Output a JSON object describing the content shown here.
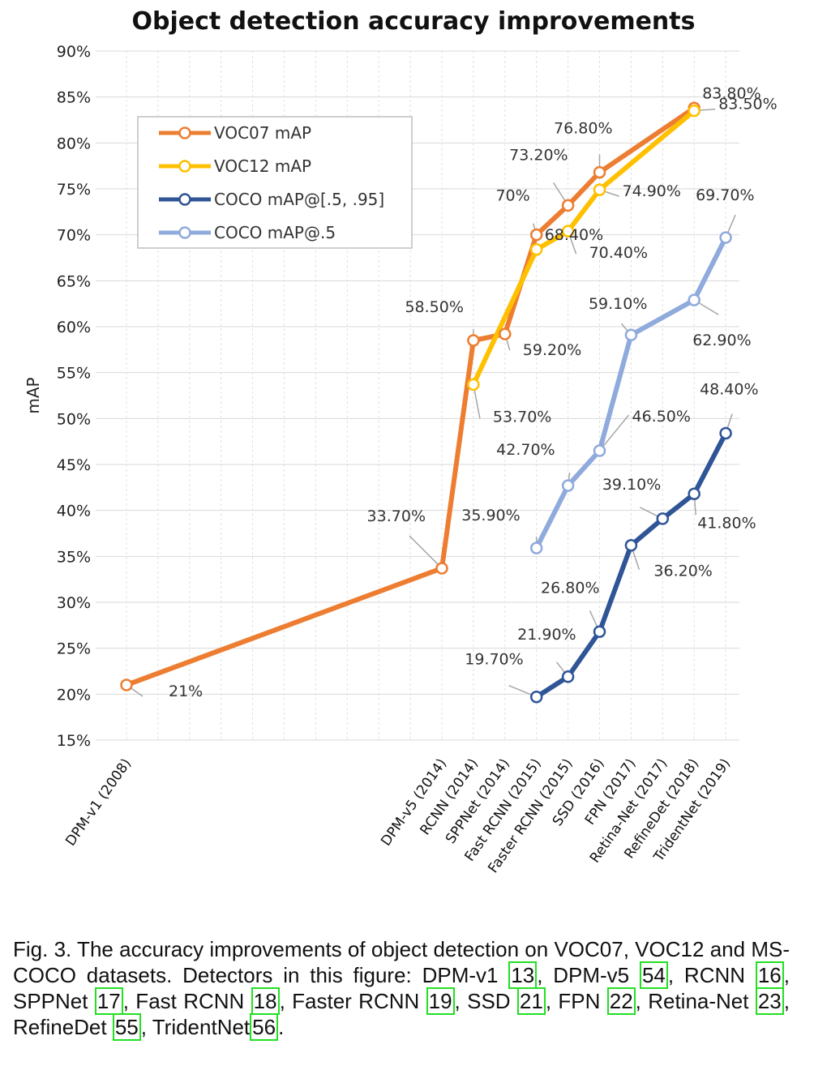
{
  "chart_data": {
    "type": "line",
    "title": "Object detection accuracy improvements",
    "xlabel": "",
    "ylabel": "mAP",
    "ylim": [
      15,
      90
    ],
    "yticks": [
      "15%",
      "20%",
      "25%",
      "30%",
      "35%",
      "40%",
      "45%",
      "50%",
      "55%",
      "60%",
      "65%",
      "70%",
      "75%",
      "80%",
      "85%",
      "90%"
    ],
    "categories": [
      "DPM-v1 (2008)",
      "DPM-v5 (2014)",
      "RCNN (2014)",
      "SPPNet (2014)",
      "Fast RCNN (2015)",
      "Faster RCNN (2015)",
      "SSD (2016)",
      "FPN (2017)",
      "Retina-Net (2017)",
      "RefineDet (2018)",
      "TridentNet (2019)"
    ],
    "x_year": [
      2008,
      2014,
      2014,
      2014,
      2015,
      2015,
      2016,
      2017,
      2017,
      2018,
      2019
    ],
    "grid": true,
    "legend_position": "top-left",
    "series": [
      {
        "name": "VOC07 mAP",
        "color": "#ED7D31",
        "points": [
          {
            "cat": 0,
            "y": 21,
            "label": "21%"
          },
          {
            "cat": 1,
            "y": 33.7,
            "label": "33.70%"
          },
          {
            "cat": 2,
            "y": 58.5,
            "label": "58.50%"
          },
          {
            "cat": 3,
            "y": 59.2,
            "label": "59.20%"
          },
          {
            "cat": 4,
            "y": 70,
            "label": "70%"
          },
          {
            "cat": 5,
            "y": 73.2,
            "label": "73.20%"
          },
          {
            "cat": 6,
            "y": 76.8,
            "label": "76.80%"
          },
          {
            "cat": 9,
            "y": 83.8,
            "label": "83.80%"
          }
        ]
      },
      {
        "name": "VOC12 mAP",
        "color": "#FFC000",
        "points": [
          {
            "cat": 2,
            "y": 53.7,
            "label": "53.70%"
          },
          {
            "cat": 4,
            "y": 68.4,
            "label": "68.40%"
          },
          {
            "cat": 5,
            "y": 70.4,
            "label": "70.40%"
          },
          {
            "cat": 6,
            "y": 74.9,
            "label": "74.90%"
          },
          {
            "cat": 9,
            "y": 83.5,
            "label": "83.50%"
          }
        ]
      },
      {
        "name": "COCO mAP@[.5, .95]",
        "color": "#2F5597",
        "points": [
          {
            "cat": 4,
            "y": 19.7,
            "label": "19.70%"
          },
          {
            "cat": 5,
            "y": 21.9,
            "label": "21.90%"
          },
          {
            "cat": 6,
            "y": 26.8,
            "label": "26.80%"
          },
          {
            "cat": 7,
            "y": 36.2,
            "label": "36.20%"
          },
          {
            "cat": 8,
            "y": 39.1,
            "label": "39.10%"
          },
          {
            "cat": 9,
            "y": 41.8,
            "label": "41.80%"
          },
          {
            "cat": 10,
            "y": 48.4,
            "label": "48.40%"
          }
        ]
      },
      {
        "name": "COCO mAP@.5",
        "color": "#8FAADC",
        "points": [
          {
            "cat": 4,
            "y": 35.9,
            "label": "35.90%"
          },
          {
            "cat": 5,
            "y": 42.7,
            "label": "42.70%"
          },
          {
            "cat": 6,
            "y": 46.5,
            "label": "46.50%"
          },
          {
            "cat": 7,
            "y": 59.1,
            "label": "59.10%"
          },
          {
            "cat": 9,
            "y": 62.9,
            "label": "62.90%"
          },
          {
            "cat": 10,
            "y": 69.7,
            "label": "69.70%"
          }
        ]
      }
    ]
  },
  "caption": {
    "parts": [
      {
        "t": "Fig. 3. The accuracy improvements of object detection on VOC07, VOC12 and MS-COCO datasets. Detectors in this figure: DPM-v1 "
      },
      {
        "t": "13",
        "ref": true
      },
      {
        "t": ", DPM-v5 "
      },
      {
        "t": "54",
        "ref": true
      },
      {
        "t": ", RCNN "
      },
      {
        "t": "16",
        "ref": true
      },
      {
        "t": ", SPPNet "
      },
      {
        "t": "17",
        "ref": true
      },
      {
        "t": ", Fast RCNN "
      },
      {
        "t": "18",
        "ref": true
      },
      {
        "t": ", Faster RCNN "
      },
      {
        "t": "19",
        "ref": true
      },
      {
        "t": ", SSD "
      },
      {
        "t": "21",
        "ref": true
      },
      {
        "t": ", FPN "
      },
      {
        "t": "22",
        "ref": true
      },
      {
        "t": ", Retina-Net "
      },
      {
        "t": "23",
        "ref": true
      },
      {
        "t": ", RefineDet "
      },
      {
        "t": "55",
        "ref": true
      },
      {
        "t": ", TridentNet"
      },
      {
        "t": "56",
        "ref": true
      },
      {
        "t": "."
      }
    ]
  }
}
